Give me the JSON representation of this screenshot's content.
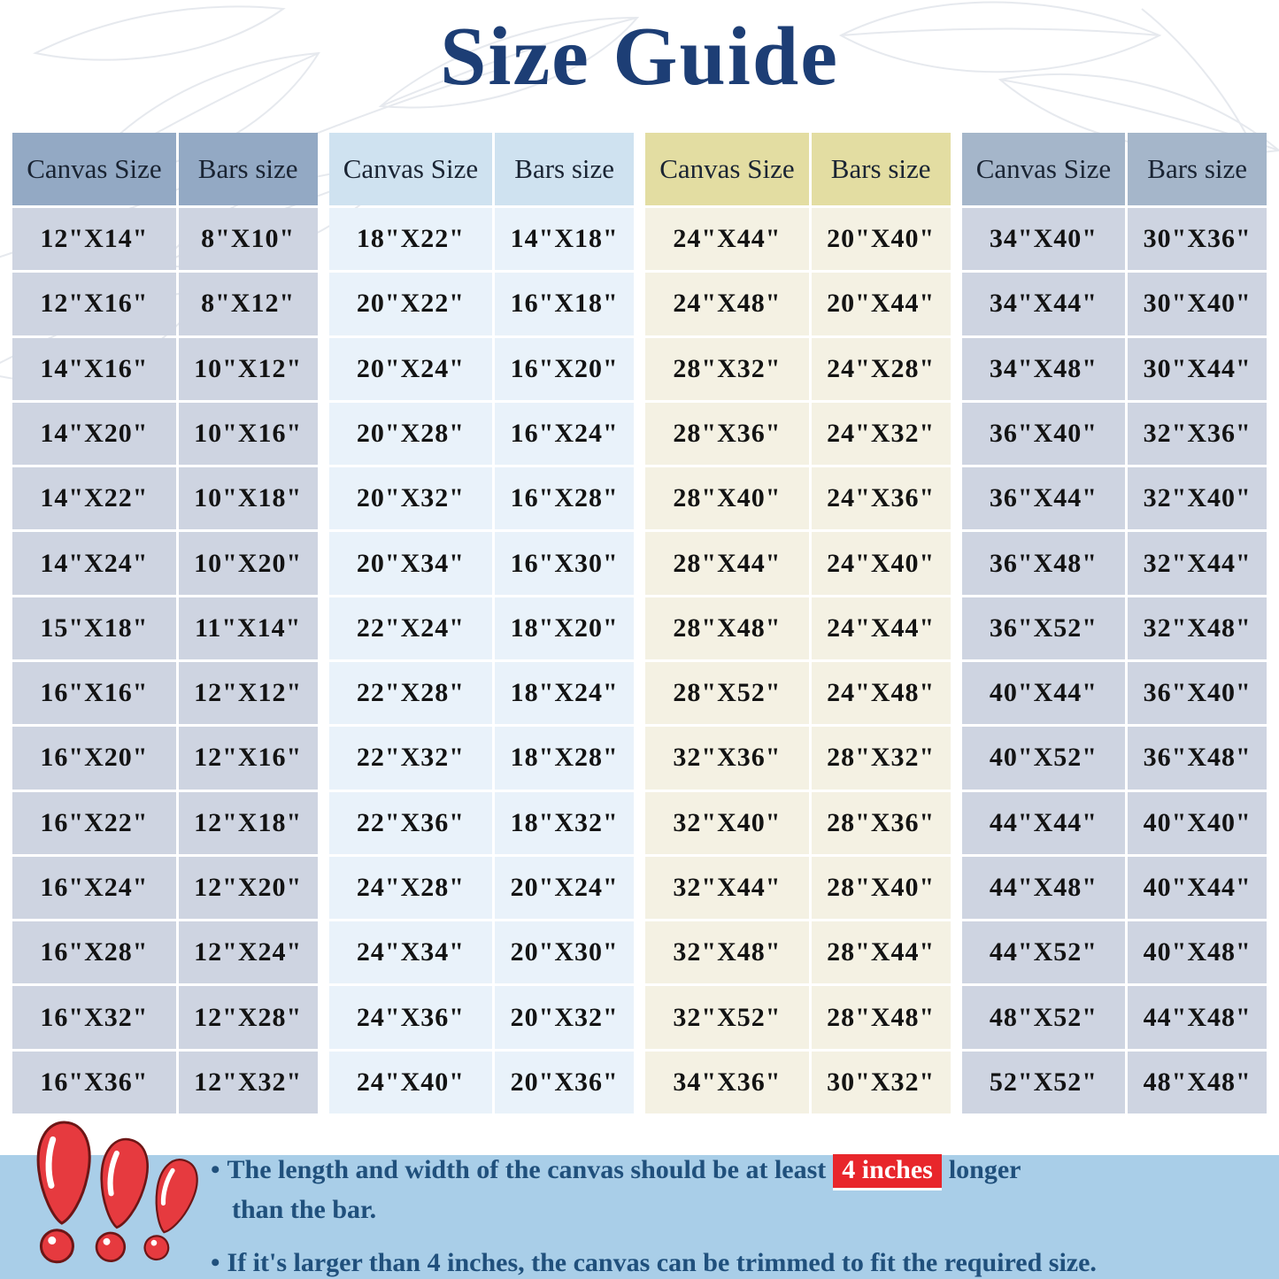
{
  "title": "Size Guide",
  "tables": [
    {
      "header": {
        "canvas": "Canvas Size",
        "bars": "Bars size"
      },
      "colors": {
        "header": "#93a9c4",
        "cell": "#ced4e1"
      },
      "rows": [
        [
          "12\"X14\"",
          "8\"X10\""
        ],
        [
          "12\"X16\"",
          "8\"X12\""
        ],
        [
          "14\"X16\"",
          "10\"X12\""
        ],
        [
          "14\"X20\"",
          "10\"X16\""
        ],
        [
          "14\"X22\"",
          "10\"X18\""
        ],
        [
          "14\"X24\"",
          "10\"X20\""
        ],
        [
          "15\"X18\"",
          "11\"X14\""
        ],
        [
          "16\"X16\"",
          "12\"X12\""
        ],
        [
          "16\"X20\"",
          "12\"X16\""
        ],
        [
          "16\"X22\"",
          "12\"X18\""
        ],
        [
          "16\"X24\"",
          "12\"X20\""
        ],
        [
          "16\"X28\"",
          "12\"X24\""
        ],
        [
          "16\"X32\"",
          "12\"X28\""
        ],
        [
          "16\"X36\"",
          "12\"X32\""
        ]
      ]
    },
    {
      "header": {
        "canvas": "Canvas Size",
        "bars": "Bars size"
      },
      "colors": {
        "header": "#cfe2f0",
        "cell": "#e9f2fa"
      },
      "rows": [
        [
          "18\"X22\"",
          "14\"X18\""
        ],
        [
          "20\"X22\"",
          "16\"X18\""
        ],
        [
          "20\"X24\"",
          "16\"X20\""
        ],
        [
          "20\"X28\"",
          "16\"X24\""
        ],
        [
          "20\"X32\"",
          "16\"X28\""
        ],
        [
          "20\"X34\"",
          "16\"X30\""
        ],
        [
          "22\"X24\"",
          "18\"X20\""
        ],
        [
          "22\"X28\"",
          "18\"X24\""
        ],
        [
          "22\"X32\"",
          "18\"X28\""
        ],
        [
          "22\"X36\"",
          "18\"X32\""
        ],
        [
          "24\"X28\"",
          "20\"X24\""
        ],
        [
          "24\"X34\"",
          "20\"X30\""
        ],
        [
          "24\"X36\"",
          "20\"X32\""
        ],
        [
          "24\"X40\"",
          "20\"X36\""
        ]
      ]
    },
    {
      "header": {
        "canvas": "Canvas Size",
        "bars": "Bars size"
      },
      "colors": {
        "header": "#e3dda2",
        "cell": "#f4f1e3"
      },
      "rows": [
        [
          "24\"X44\"",
          "20\"X40\""
        ],
        [
          "24\"X48\"",
          "20\"X44\""
        ],
        [
          "28\"X32\"",
          "24\"X28\""
        ],
        [
          "28\"X36\"",
          "24\"X32\""
        ],
        [
          "28\"X40\"",
          "24\"X36\""
        ],
        [
          "28\"X44\"",
          "24\"X40\""
        ],
        [
          "28\"X48\"",
          "24\"X44\""
        ],
        [
          "28\"X52\"",
          "24\"X48\""
        ],
        [
          "32\"X36\"",
          "28\"X32\""
        ],
        [
          "32\"X40\"",
          "28\"X36\""
        ],
        [
          "32\"X44\"",
          "28\"X40\""
        ],
        [
          "32\"X48\"",
          "28\"X44\""
        ],
        [
          "32\"X52\"",
          "28\"X48\""
        ],
        [
          "34\"X36\"",
          "30\"X32\""
        ]
      ]
    },
    {
      "header": {
        "canvas": "Canvas Size",
        "bars": "Bars size"
      },
      "colors": {
        "header": "#a5b6ca",
        "cell": "#ced4e1"
      },
      "rows": [
        [
          "34\"X40\"",
          "30\"X36\""
        ],
        [
          "34\"X44\"",
          "30\"X40\""
        ],
        [
          "34\"X48\"",
          "30\"X44\""
        ],
        [
          "36\"X40\"",
          "32\"X36\""
        ],
        [
          "36\"X44\"",
          "32\"X40\""
        ],
        [
          "36\"X48\"",
          "32\"X44\""
        ],
        [
          "36\"X52\"",
          "32\"X48\""
        ],
        [
          "40\"X44\"",
          "36\"X40\""
        ],
        [
          "40\"X52\"",
          "36\"X48\""
        ],
        [
          "44\"X44\"",
          "40\"X40\""
        ],
        [
          "44\"X48\"",
          "40\"X44\""
        ],
        [
          "44\"X52\"",
          "40\"X48\""
        ],
        [
          "48\"X52\"",
          "44\"X48\""
        ],
        [
          "52\"X52\"",
          "48\"X48\""
        ]
      ]
    }
  ],
  "notes": {
    "bullet_glyph": "•",
    "bullet1_pre": "The length and width of the canvas should be at least",
    "bullet1_highlight": "4 inches",
    "bullet1_post": "longer",
    "bullet1_line2": "than the bar.",
    "bullet2": "If it's larger than 4 inches, the canvas can be trimmed to fit the required size."
  },
  "colors": {
    "title": "#1d3e75",
    "footer_background": "#a9cee8",
    "note_text": "#20507c",
    "highlight_background": "#e8262b",
    "highlight_text": "#ffffff",
    "exclamation_red": "#e63a3f"
  }
}
